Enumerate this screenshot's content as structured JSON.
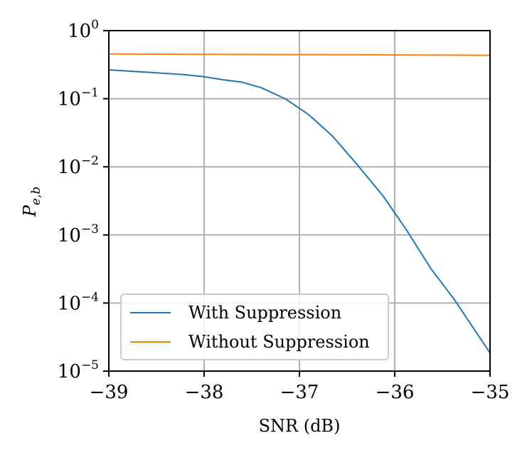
{
  "chart_data": {
    "type": "line",
    "xlabel": "SNR (dB)",
    "ylabel": "P",
    "ylabel_sub": "e,b",
    "xlim": [
      -39,
      -35
    ],
    "ylim": [
      1e-05,
      1
    ],
    "yscale": "log",
    "grid": true,
    "legend_position": "lower-left",
    "x_ticks": [
      -39,
      -38,
      -37,
      -36,
      -35
    ],
    "x_tick_labels": [
      "−39",
      "−38",
      "−37",
      "−36",
      "−35"
    ],
    "y_ticks": [
      1e-05,
      0.0001,
      0.001,
      0.01,
      0.1,
      1
    ],
    "y_tick_labels": [
      {
        "base": "10",
        "exp": "−5"
      },
      {
        "base": "10",
        "exp": "−4"
      },
      {
        "base": "10",
        "exp": "−3"
      },
      {
        "base": "10",
        "exp": "−2"
      },
      {
        "base": "10",
        "exp": "−1"
      },
      {
        "base": "10",
        "exp": "0"
      }
    ],
    "series": [
      {
        "name": "With Suppression",
        "color": "#1f77b4",
        "x": [
          -39,
          -38.8,
          -38.6,
          -38.4,
          -38.2,
          -38.0,
          -37.8,
          -37.6,
          -37.4,
          -37.15,
          -36.9,
          -36.65,
          -36.4,
          -36.12,
          -35.88,
          -35.62,
          -35.37,
          -35.0
        ],
        "y": [
          0.265,
          0.255,
          0.245,
          0.235,
          0.225,
          0.21,
          0.19,
          0.175,
          0.145,
          0.1,
          0.058,
          0.028,
          0.011,
          0.0037,
          0.0012,
          0.00032,
          0.00011,
          1.85e-05
        ]
      },
      {
        "name": "Without Suppression",
        "color": "#ff7f0e",
        "x": [
          -39,
          -38,
          -37,
          -36,
          -35
        ],
        "y": [
          0.455,
          0.45,
          0.445,
          0.44,
          0.435
        ]
      }
    ]
  }
}
